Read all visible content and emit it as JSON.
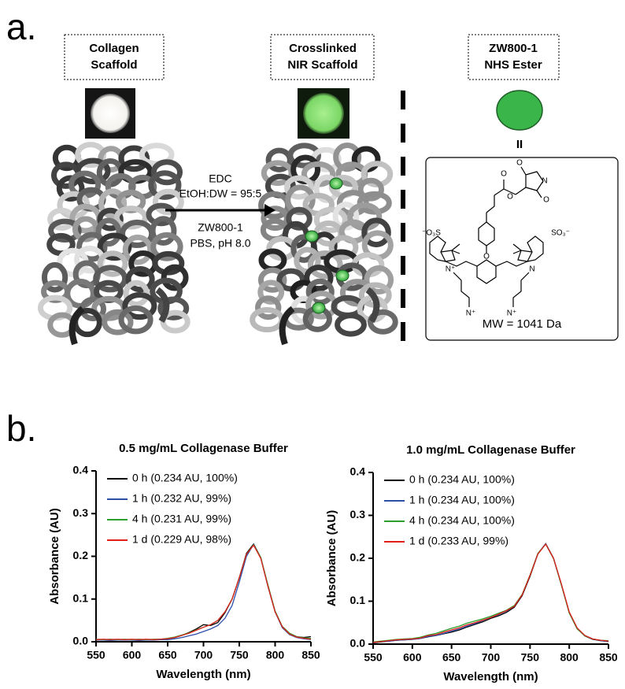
{
  "panel_a": {
    "label": "a.",
    "boxes": [
      [
        "Collagen",
        "Scaffold"
      ],
      [
        "Crosslinked",
        "NIR Scaffold"
      ],
      [
        "ZW800-1",
        "NHS Ester"
      ]
    ],
    "reaction": [
      "EDC",
      "EtOH:DW = 95:5",
      "ZW800-1",
      "PBS, pH 8.0"
    ],
    "equals": "II",
    "structure": {
      "atoms": [
        "O",
        "N",
        "O",
        "O",
        "O",
        "O",
        "⁻O₃S",
        "SO₃⁻",
        "N⁺",
        "N",
        "N⁺",
        "N⁺"
      ],
      "mw": "MW = 1041 Da"
    }
  },
  "panel_b": {
    "label": "b."
  },
  "chart_data": [
    {
      "type": "line",
      "title": "0.5 mg/mL Collagenase Buffer",
      "xlabel": "Wavelength (nm)",
      "ylabel": "Absorbance (AU)",
      "x": [
        550,
        560,
        570,
        580,
        590,
        600,
        610,
        620,
        630,
        640,
        650,
        660,
        670,
        680,
        690,
        700,
        710,
        720,
        730,
        740,
        750,
        760,
        770,
        780,
        790,
        800,
        810,
        820,
        830,
        840,
        850
      ],
      "xlim": [
        550,
        850
      ],
      "xticks": [
        550,
        600,
        650,
        700,
        750,
        800,
        850
      ],
      "ylim": [
        0,
        0.4
      ],
      "yticks": [
        {
          "value": 0,
          "label": "0.0"
        },
        0.1,
        0.2,
        0.3,
        0.4
      ],
      "legend": "upper left",
      "series": [
        {
          "name": "0 h (0.234 AU, 100%)",
          "color": "#000000",
          "values": [
            0.004,
            0.005,
            0.004,
            0.005,
            0.004,
            0.005,
            0.004,
            0.005,
            0.004,
            0.006,
            0.007,
            0.01,
            0.015,
            0.022,
            0.03,
            0.04,
            0.038,
            0.045,
            0.068,
            0.1,
            0.15,
            0.207,
            0.229,
            0.197,
            0.13,
            0.07,
            0.035,
            0.02,
            0.012,
            0.01,
            0.012
          ]
        },
        {
          "name": "1 h (0.232 AU, 99%)",
          "color": "#2b4fa8",
          "values": [
            0.004,
            0.004,
            0.003,
            0.004,
            0.004,
            0.004,
            0.003,
            0.004,
            0.004,
            0.005,
            0.005,
            0.007,
            0.01,
            0.014,
            0.018,
            0.024,
            0.03,
            0.038,
            0.055,
            0.085,
            0.14,
            0.2,
            0.228,
            0.196,
            0.13,
            0.07,
            0.033,
            0.017,
            0.01,
            0.007,
            0.005
          ]
        },
        {
          "name": "4 h (0.231 AU, 99%)",
          "color": "#2ca02c",
          "values": [
            0.006,
            0.005,
            0.006,
            0.005,
            0.006,
            0.005,
            0.006,
            0.005,
            0.006,
            0.006,
            0.008,
            0.011,
            0.016,
            0.021,
            0.028,
            0.034,
            0.04,
            0.05,
            0.07,
            0.1,
            0.15,
            0.205,
            0.227,
            0.197,
            0.133,
            0.072,
            0.036,
            0.02,
            0.012,
            0.009,
            0.008
          ]
        },
        {
          "name": "1 d (0.229 AU, 98%)",
          "color": "#e0201b",
          "values": [
            0.005,
            0.006,
            0.005,
            0.006,
            0.005,
            0.006,
            0.005,
            0.006,
            0.005,
            0.006,
            0.007,
            0.01,
            0.015,
            0.02,
            0.027,
            0.034,
            0.04,
            0.05,
            0.07,
            0.1,
            0.15,
            0.205,
            0.226,
            0.195,
            0.13,
            0.07,
            0.035,
            0.018,
            0.011,
            0.008,
            0.006
          ]
        }
      ]
    },
    {
      "type": "line",
      "title": "1.0 mg/mL Collagenase Buffer",
      "xlabel": "Wavelength (nm)",
      "ylabel": "Absorbance (AU)",
      "x": [
        550,
        560,
        570,
        580,
        590,
        600,
        610,
        620,
        630,
        640,
        650,
        660,
        670,
        680,
        690,
        700,
        710,
        720,
        730,
        740,
        750,
        760,
        770,
        780,
        790,
        800,
        810,
        820,
        830,
        840,
        850
      ],
      "xlim": [
        550,
        850
      ],
      "xticks": [
        550,
        600,
        650,
        700,
        750,
        800,
        850
      ],
      "ylim": [
        0,
        0.4
      ],
      "yticks": [
        {
          "value": 0,
          "label": "0.0"
        },
        0.1,
        0.2,
        0.3,
        0.4
      ],
      "legend": "upper left",
      "series": [
        {
          "name": "0 h (0.234 AU, 100%)",
          "color": "#000000",
          "values": [
            0.003,
            0.005,
            0.007,
            0.009,
            0.01,
            0.011,
            0.013,
            0.017,
            0.02,
            0.024,
            0.028,
            0.033,
            0.04,
            0.046,
            0.052,
            0.06,
            0.066,
            0.074,
            0.086,
            0.113,
            0.158,
            0.21,
            0.234,
            0.2,
            0.138,
            0.073,
            0.036,
            0.019,
            0.011,
            0.008,
            0.006
          ]
        },
        {
          "name": "1 h (0.234 AU, 100%)",
          "color": "#2b4fa8",
          "values": [
            0.004,
            0.006,
            0.007,
            0.009,
            0.01,
            0.011,
            0.013,
            0.018,
            0.02,
            0.025,
            0.03,
            0.035,
            0.042,
            0.048,
            0.055,
            0.062,
            0.069,
            0.077,
            0.088,
            0.115,
            0.16,
            0.211,
            0.234,
            0.2,
            0.139,
            0.074,
            0.037,
            0.02,
            0.012,
            0.008,
            0.006
          ]
        },
        {
          "name": "4 h (0.234 AU, 100%)",
          "color": "#2ca02c",
          "values": [
            0.005,
            0.007,
            0.009,
            0.011,
            0.012,
            0.013,
            0.016,
            0.021,
            0.025,
            0.031,
            0.037,
            0.042,
            0.049,
            0.054,
            0.059,
            0.065,
            0.072,
            0.079,
            0.09,
            0.116,
            0.161,
            0.211,
            0.233,
            0.199,
            0.138,
            0.073,
            0.036,
            0.019,
            0.012,
            0.009,
            0.008
          ]
        },
        {
          "name": "1 d (0.233 AU, 99%)",
          "color": "#e0201b",
          "values": [
            0.004,
            0.006,
            0.008,
            0.01,
            0.011,
            0.012,
            0.014,
            0.02,
            0.022,
            0.028,
            0.033,
            0.038,
            0.045,
            0.05,
            0.056,
            0.062,
            0.07,
            0.078,
            0.088,
            0.115,
            0.16,
            0.21,
            0.233,
            0.2,
            0.14,
            0.075,
            0.038,
            0.02,
            0.012,
            0.009,
            0.007
          ]
        }
      ]
    }
  ]
}
